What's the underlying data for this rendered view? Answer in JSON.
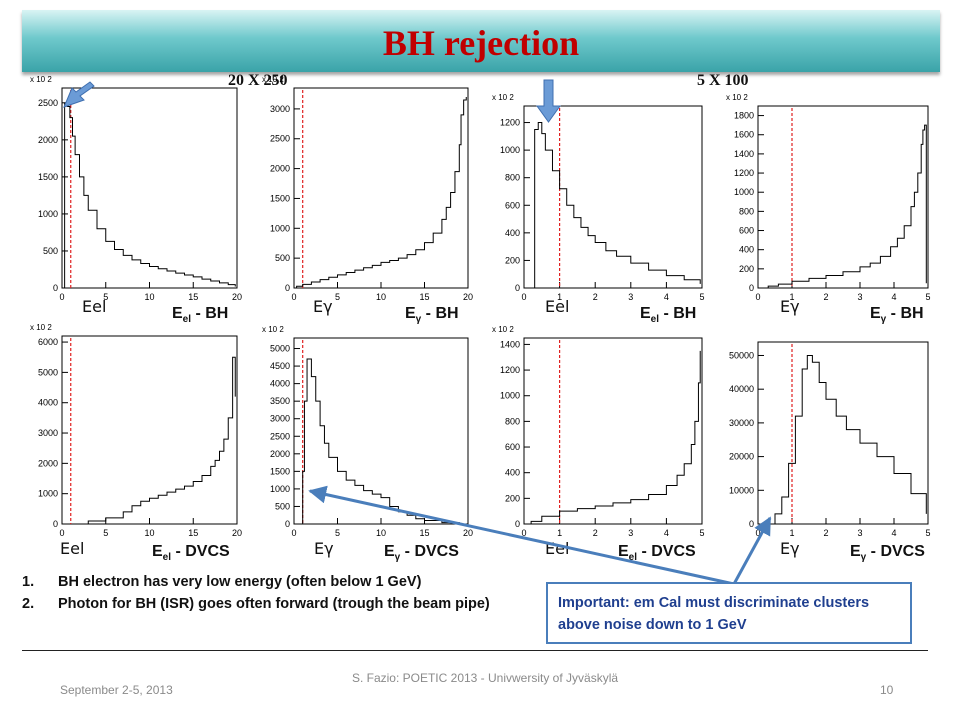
{
  "title": "BH rejection",
  "binning_left": "20 X 250",
  "binning_right": "5 X 100",
  "chart_data": [
    {
      "type": "line",
      "title": "Eel - BH",
      "title_parts": [
        "E",
        "el",
        " - BH"
      ],
      "panel_label": "Eel",
      "yscale_note": "x 10 2",
      "xlim": [
        0,
        20
      ],
      "ylim": [
        0,
        2700
      ],
      "xticks": [
        0,
        5,
        10,
        15,
        20
      ],
      "yticks": [
        0,
        500,
        1000,
        1500,
        2000,
        2500
      ],
      "cut": 1,
      "x": [
        0.08,
        0.3,
        0.6,
        0.9,
        1.2,
        1.5,
        2,
        2.5,
        3,
        4,
        5,
        6,
        7,
        8,
        9,
        10,
        11,
        12,
        13,
        14,
        15,
        16,
        17,
        18,
        19,
        19.8
      ],
      "values": [
        0,
        2500,
        2450,
        2300,
        2050,
        1800,
        1500,
        1250,
        1050,
        800,
        630,
        520,
        440,
        380,
        330,
        290,
        260,
        230,
        200,
        175,
        150,
        120,
        95,
        70,
        45,
        20
      ]
    },
    {
      "type": "line",
      "title": "Eγ - BH",
      "title_parts": [
        "E",
        "γ",
        " - BH"
      ],
      "panel_label": "Eγ",
      "yscale_note": "x 10 2",
      "xlim": [
        0,
        20
      ],
      "ylim": [
        0,
        3350
      ],
      "xticks": [
        0,
        5,
        10,
        15,
        20
      ],
      "yticks": [
        0,
        500,
        1000,
        1500,
        2000,
        2500,
        3000
      ],
      "cut": 1,
      "x": [
        0.3,
        1,
        2,
        3,
        4,
        5,
        6,
        7,
        8,
        9,
        10,
        11,
        12,
        13,
        14,
        15,
        16,
        17,
        17.5,
        18,
        18.5,
        19,
        19.2,
        19.5,
        19.8
      ],
      "values": [
        30,
        60,
        100,
        140,
        180,
        220,
        260,
        300,
        340,
        380,
        430,
        460,
        500,
        560,
        640,
        760,
        920,
        1150,
        1350,
        1600,
        1950,
        2400,
        2900,
        3150,
        3200
      ]
    },
    {
      "type": "line",
      "title": "Eel - BH",
      "title_parts": [
        "E",
        "el",
        " - BH"
      ],
      "panel_label": "Eel",
      "yscale_note": "x 10 2",
      "xlim": [
        0,
        5
      ],
      "ylim": [
        0,
        1320
      ],
      "xticks": [
        0,
        1,
        2,
        3,
        4,
        5
      ],
      "yticks": [
        0,
        200,
        400,
        600,
        800,
        1000,
        1200
      ],
      "cut": 1,
      "x": [
        0.2,
        0.3,
        0.4,
        0.5,
        0.6,
        0.8,
        1,
        1.2,
        1.4,
        1.6,
        1.8,
        2,
        2.3,
        2.6,
        3,
        3.5,
        4,
        4.5,
        4.95
      ],
      "values": [
        0,
        1150,
        1200,
        1120,
        1000,
        850,
        720,
        600,
        510,
        440,
        380,
        330,
        270,
        230,
        180,
        130,
        90,
        60,
        30
      ]
    },
    {
      "type": "line",
      "title": "Eγ - BH",
      "title_parts": [
        "E",
        "γ",
        " - BH"
      ],
      "panel_label": "Eγ",
      "yscale_note": "x 10 2",
      "xlim": [
        0,
        5
      ],
      "ylim": [
        0,
        1900
      ],
      "xticks": [
        0,
        1,
        2,
        3,
        4,
        5
      ],
      "yticks": [
        0,
        200,
        400,
        600,
        800,
        1000,
        1200,
        1400,
        1600,
        1800
      ],
      "cut": 1,
      "x": [
        0.3,
        0.6,
        1,
        1.5,
        2,
        2.5,
        3,
        3.3,
        3.6,
        3.9,
        4.1,
        4.3,
        4.5,
        4.6,
        4.7,
        4.8,
        4.85,
        4.9,
        4.95
      ],
      "values": [
        20,
        40,
        70,
        100,
        130,
        170,
        220,
        260,
        330,
        430,
        520,
        650,
        850,
        1000,
        1200,
        1500,
        1650,
        1700,
        50
      ]
    },
    {
      "type": "line",
      "title": "Eel - DVCS",
      "title_parts": [
        "E",
        "el",
        " - DVCS"
      ],
      "panel_label": "Eel",
      "yscale_note": "x 10 2",
      "xlim": [
        0,
        20
      ],
      "ylim": [
        0,
        6200
      ],
      "xticks": [
        0,
        5,
        10,
        15,
        20
      ],
      "yticks": [
        0,
        1000,
        2000,
        3000,
        4000,
        5000,
        6000
      ],
      "cut": 1,
      "x": [
        3,
        5,
        7,
        8,
        9,
        10,
        11,
        12,
        13,
        14,
        15,
        16,
        17,
        17.5,
        18,
        18.5,
        19,
        19.5,
        19.8
      ],
      "values": [
        100,
        200,
        400,
        600,
        750,
        850,
        950,
        1050,
        1150,
        1250,
        1400,
        1600,
        1900,
        2100,
        2400,
        2800,
        3500,
        5500,
        4200
      ]
    },
    {
      "type": "line",
      "title": "Eγ - DVCS",
      "title_parts": [
        "E",
        "γ",
        " - DVCS"
      ],
      "panel_label": "Eγ",
      "yscale_note": "x 10 2",
      "xlim": [
        0,
        20
      ],
      "ylim": [
        0,
        5300
      ],
      "xticks": [
        0,
        5,
        10,
        15,
        20
      ],
      "yticks": [
        0,
        500,
        1000,
        1500,
        2000,
        2500,
        3000,
        3500,
        4000,
        4500,
        5000
      ],
      "cut": 1,
      "x": [
        0.8,
        1,
        1.2,
        1.5,
        2,
        2.5,
        3,
        3.5,
        4,
        5,
        6,
        7,
        8,
        9,
        10,
        11,
        12,
        13,
        14,
        15,
        17,
        19
      ],
      "values": [
        0,
        1500,
        3500,
        4700,
        4200,
        3500,
        2800,
        2300,
        1900,
        1500,
        1250,
        1100,
        950,
        850,
        750,
        500,
        350,
        250,
        150,
        100,
        40,
        10
      ]
    },
    {
      "type": "line",
      "title": "Eel - DVCS",
      "title_parts": [
        "E",
        "el",
        " - DVCS"
      ],
      "panel_label": "Eel",
      "yscale_note": "x 10 2",
      "xlim": [
        0,
        5
      ],
      "ylim": [
        0,
        1450
      ],
      "xticks": [
        0,
        1,
        2,
        3,
        4,
        5
      ],
      "yticks": [
        0,
        200,
        400,
        600,
        800,
        1000,
        1200,
        1400
      ],
      "cut": 1,
      "x": [
        0.2,
        0.5,
        1,
        1.5,
        2,
        2.5,
        3,
        3.5,
        4,
        4.3,
        4.5,
        4.7,
        4.8,
        4.9,
        4.95
      ],
      "values": [
        20,
        60,
        100,
        120,
        140,
        165,
        190,
        230,
        300,
        380,
        470,
        620,
        800,
        1100,
        1350
      ]
    },
    {
      "type": "line",
      "title": "Eγ - DVCS",
      "title_parts": [
        "E",
        "γ",
        " - DVCS"
      ],
      "panel_label": "Eγ",
      "yscale_note": "",
      "xlim": [
        0,
        5
      ],
      "ylim": [
        0,
        54000
      ],
      "xticks": [
        0,
        1,
        2,
        3,
        4,
        5
      ],
      "yticks": [
        0,
        10000,
        20000,
        30000,
        40000,
        50000
      ],
      "cut": 1,
      "x": [
        0.3,
        0.5,
        0.7,
        0.9,
        1.1,
        1.3,
        1.45,
        1.6,
        1.8,
        2,
        2.3,
        2.6,
        3,
        3.5,
        4,
        4.5,
        4.95
      ],
      "values": [
        0,
        3000,
        8000,
        18000,
        32000,
        46000,
        50000,
        48000,
        42000,
        37000,
        32000,
        28000,
        24000,
        20000,
        15000,
        9000,
        3000
      ]
    }
  ],
  "notes": [
    {
      "num": "1.",
      "text": "BH electron has very low energy (often below 1 GeV)"
    },
    {
      "num": "2.",
      "text": "Photon for BH (ISR) goes often forward (trough the beam pipe)"
    }
  ],
  "callout": "Important: em Cal must discriminate clusters above noise down to 1 GeV",
  "footer": {
    "date": "September 2-5, 2013",
    "center": "S. Fazio: POETIC 2013 - Univwersity of Jyväskylä",
    "page": "10"
  },
  "colors": {
    "title": "#c00000",
    "cut_line": "#e02020",
    "arrow": "#4a7ebb",
    "callout_text": "#1f3f8f"
  }
}
